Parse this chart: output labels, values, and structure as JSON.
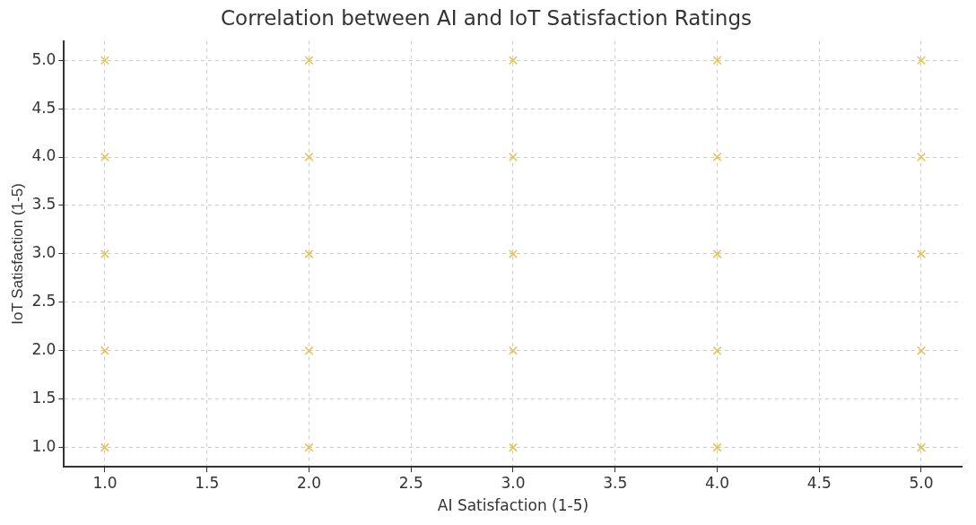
{
  "chart_data": {
    "type": "scatter",
    "title": "Correlation between AI and IoT Satisfaction Ratings",
    "xlabel": "AI Satisfaction (1-5)",
    "ylabel": "IoT Satisfaction (1-5)",
    "x": [
      1,
      1,
      1,
      1,
      1,
      2,
      2,
      2,
      2,
      2,
      3,
      3,
      3,
      3,
      3,
      4,
      4,
      4,
      4,
      4,
      5,
      5,
      5,
      5,
      5
    ],
    "series": [
      {
        "color": "#e8c04a",
        "values": [
          1,
          2,
          3,
          4,
          5,
          1,
          2,
          3,
          4,
          5,
          1,
          2,
          3,
          4,
          5,
          1,
          2,
          3,
          4,
          5,
          1,
          2,
          3,
          4,
          5
        ]
      }
    ],
    "xlim": [
      0.8,
      5.2
    ],
    "ylim": [
      0.8,
      5.2
    ],
    "xticks": [
      {
        "value": 1,
        "label": "1.0"
      },
      {
        "value": 1.5,
        "label": "1.5"
      },
      {
        "value": 2,
        "label": "2.0"
      },
      {
        "value": 2.5,
        "label": "2.5"
      },
      {
        "value": 3,
        "label": "3.0"
      },
      {
        "value": 3.5,
        "label": "3.5"
      },
      {
        "value": 4,
        "label": "4.0"
      },
      {
        "value": 4.5,
        "label": "4.5"
      },
      {
        "value": 5,
        "label": "5.0"
      }
    ],
    "yticks": [
      {
        "value": 1,
        "label": "1.0"
      },
      {
        "value": 1.5,
        "label": "1.5"
      },
      {
        "value": 2,
        "label": "2.0"
      },
      {
        "value": 2.5,
        "label": "2.5"
      },
      {
        "value": 3,
        "label": "3.0"
      },
      {
        "value": 3.5,
        "label": "3.5"
      },
      {
        "value": 4,
        "label": "4.0"
      },
      {
        "value": 4.5,
        "label": "4.5"
      },
      {
        "value": 5,
        "label": "5.0"
      }
    ],
    "grid": true,
    "legend": false,
    "marker": "cross"
  }
}
